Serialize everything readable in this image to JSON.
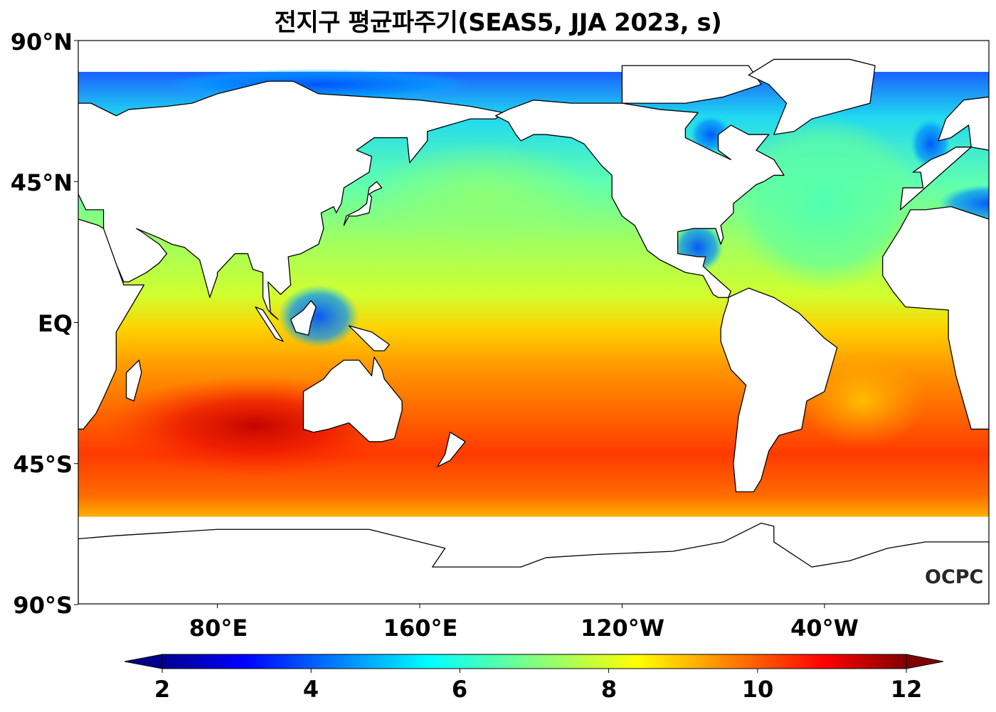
{
  "title": "전지구 평균파주기(SEAS5, JJA 2023, s)",
  "y_axis": {
    "labels": [
      "90°N",
      "45°N",
      "EQ",
      "45°S",
      "90°S"
    ],
    "values": [
      90,
      45,
      0,
      -45,
      -90
    ]
  },
  "x_axis": {
    "labels": [
      "80°E",
      "160°E",
      "120°W",
      "40°W"
    ],
    "values": [
      80,
      160,
      240,
      320
    ]
  },
  "colorbar": {
    "colormap": "jet",
    "min": 2,
    "max": 12,
    "extend": "both",
    "ticks": [
      "2",
      "4",
      "6",
      "8",
      "10",
      "12"
    ],
    "tick_values": [
      2,
      4,
      6,
      8,
      10,
      12
    ]
  },
  "logo": "OCPC",
  "colors": {
    "land": "#ffffff",
    "coast": "#000000"
  }
}
